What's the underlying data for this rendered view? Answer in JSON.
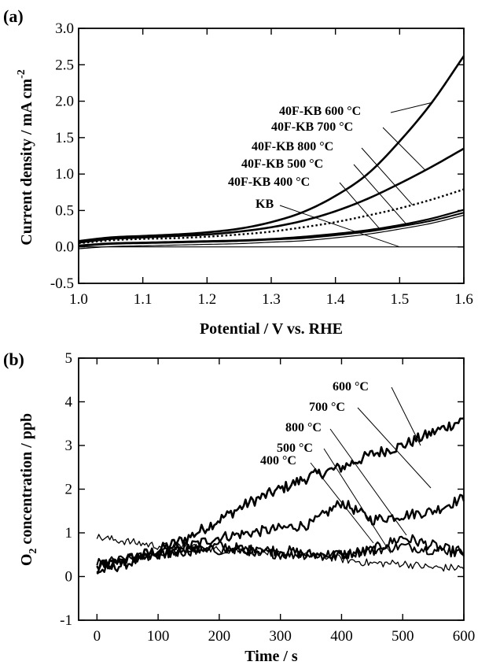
{
  "chart_data": [
    {
      "panel_label": "(a)",
      "type": "line",
      "xlabel": "Potential / V vs. RHE",
      "ylabel": "Current density / mA cm",
      "ylabel_sup": "-2",
      "xlim": [
        1.0,
        1.6
      ],
      "ylim": [
        -0.5,
        3.0
      ],
      "xticks": [
        1.0,
        1.1,
        1.2,
        1.3,
        1.4,
        1.5,
        1.6
      ],
      "yticks": [
        -0.5,
        0.0,
        0.5,
        1.0,
        1.5,
        2.0,
        2.5,
        3.0
      ],
      "xtick_labels": [
        "1.0",
        "1.1",
        "1.2",
        "1.3",
        "1.4",
        "1.5",
        "1.6"
      ],
      "ytick_labels": [
        "-0.5",
        "0.0",
        "0.5",
        "1.0",
        "1.5",
        "2.0",
        "2.5",
        "3.0"
      ],
      "x": [
        1.0,
        1.05,
        1.1,
        1.15,
        1.2,
        1.25,
        1.3,
        1.35,
        1.4,
        1.45,
        1.5,
        1.55,
        1.6
      ],
      "series": [
        {
          "name": "40F-KB 600 °C",
          "style": "solid-thick",
          "values": [
            0.08,
            0.13,
            0.15,
            0.17,
            0.2,
            0.25,
            0.34,
            0.48,
            0.7,
            1.0,
            1.45,
            1.98,
            2.62
          ]
        },
        {
          "name": "40F-KB 700 °C",
          "style": "solid-thick",
          "values": [
            0.06,
            0.11,
            0.13,
            0.15,
            0.17,
            0.21,
            0.27,
            0.36,
            0.49,
            0.66,
            0.87,
            1.1,
            1.35
          ]
        },
        {
          "name": "40F-KB 800 °C",
          "style": "dotted",
          "values": [
            0.05,
            0.09,
            0.11,
            0.12,
            0.14,
            0.17,
            0.21,
            0.27,
            0.34,
            0.43,
            0.53,
            0.65,
            0.79
          ]
        },
        {
          "name": "40F-KB 500 °C",
          "style": "solid",
          "values": [
            0.02,
            0.05,
            0.06,
            0.07,
            0.08,
            0.09,
            0.11,
            0.14,
            0.18,
            0.23,
            0.3,
            0.39,
            0.51
          ]
        },
        {
          "name": "40F-KB 400 °C",
          "style": "double",
          "values": [
            0.01,
            0.04,
            0.05,
            0.06,
            0.07,
            0.08,
            0.1,
            0.12,
            0.16,
            0.21,
            0.28,
            0.36,
            0.47
          ]
        },
        {
          "name": "KB",
          "style": "thin",
          "values": [
            0.0,
            0.0,
            0.0,
            0.0,
            0.0,
            0.0,
            0.0,
            0.0,
            0.0,
            0.0,
            0.0,
            0.0,
            0.0
          ]
        }
      ]
    },
    {
      "panel_label": "(b)",
      "type": "line",
      "xlabel": "Time / s",
      "ylabel_main": "O",
      "ylabel_sub": "2",
      "ylabel_rest": " concentration / ppb",
      "xlim": [
        -30,
        600
      ],
      "ylim": [
        -1,
        5
      ],
      "xticks": [
        0,
        100,
        200,
        300,
        400,
        500,
        600
      ],
      "yticks": [
        -1,
        0,
        1,
        2,
        3,
        4,
        5
      ],
      "xtick_labels": [
        "0",
        "100",
        "200",
        "300",
        "400",
        "500",
        "600"
      ],
      "ytick_labels": [
        "-1",
        "0",
        "1",
        "2",
        "3",
        "4",
        "5"
      ],
      "x": [
        0,
        50,
        100,
        150,
        200,
        250,
        300,
        350,
        400,
        450,
        500,
        550,
        600
      ],
      "series": [
        {
          "name": "600 °C",
          "values": [
            0.2,
            0.4,
            0.6,
            0.9,
            1.3,
            1.7,
            2.0,
            2.3,
            2.5,
            2.8,
            3.0,
            3.3,
            3.6
          ]
        },
        {
          "name": "700 °C",
          "values": [
            0.1,
            0.3,
            0.5,
            0.7,
            0.9,
            1.0,
            1.1,
            1.2,
            1.7,
            1.3,
            1.4,
            1.5,
            1.8
          ]
        },
        {
          "name": "800 °C",
          "values": [
            0.2,
            0.4,
            0.5,
            0.6,
            0.7,
            0.6,
            0.6,
            0.5,
            0.5,
            0.6,
            0.9,
            0.7,
            0.5
          ]
        },
        {
          "name": "500 °C",
          "values": [
            0.3,
            0.4,
            0.5,
            0.6,
            0.6,
            0.6,
            0.5,
            0.5,
            0.5,
            0.6,
            0.7,
            0.6,
            0.6
          ]
        },
        {
          "name": "400 °C",
          "values": [
            0.9,
            0.8,
            0.7,
            0.7,
            0.6,
            0.6,
            0.5,
            0.5,
            0.4,
            0.3,
            0.3,
            0.2,
            0.2
          ]
        }
      ]
    }
  ]
}
